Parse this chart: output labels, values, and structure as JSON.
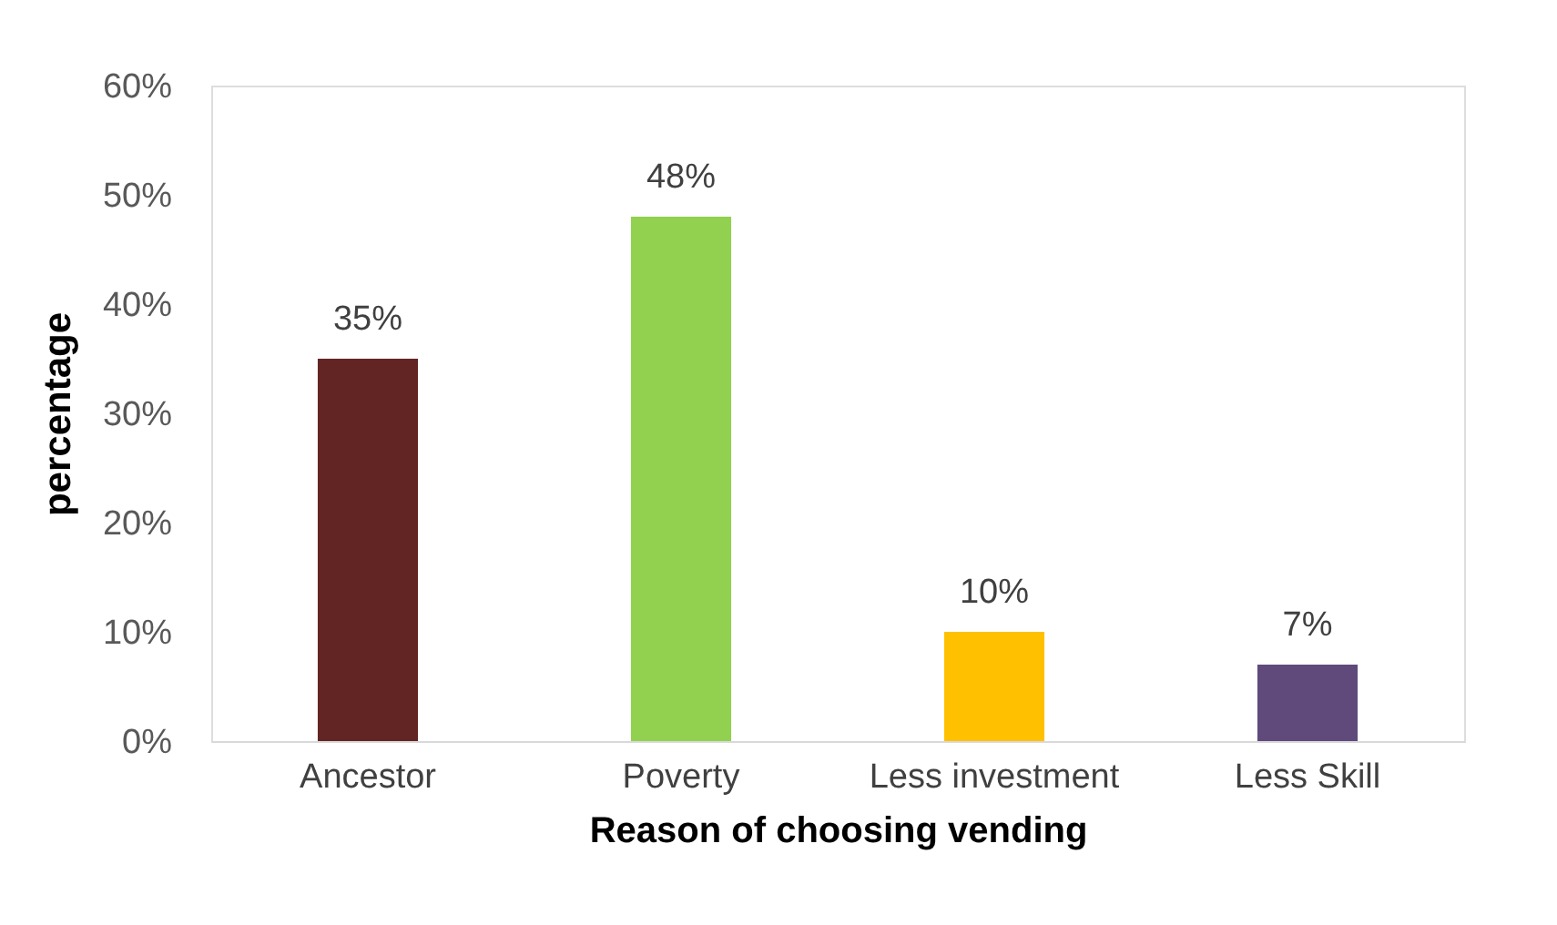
{
  "chart_data": {
    "type": "bar",
    "xlabel": "Reason of choosing vending",
    "ylabel": "percentage",
    "categories": [
      "Ancestor",
      "Poverty",
      "Less investment",
      "Less Skill"
    ],
    "values": [
      35,
      48,
      10,
      7
    ],
    "colors": [
      "#632523",
      "#92d050",
      "#ffc000",
      "#604a7b"
    ],
    "value_labels": [
      "35%",
      "48%",
      "10%",
      "7%"
    ],
    "ylim": [
      0,
      60
    ],
    "yticks": [
      {
        "value": 0,
        "label": "0%"
      },
      {
        "value": 10,
        "label": "10%"
      },
      {
        "value": 20,
        "label": "20%"
      },
      {
        "value": 30,
        "label": "30%"
      },
      {
        "value": 40,
        "label": "40%"
      },
      {
        "value": 50,
        "label": "50%"
      },
      {
        "value": 60,
        "label": "60%"
      }
    ],
    "grid": false,
    "legend": false
  }
}
